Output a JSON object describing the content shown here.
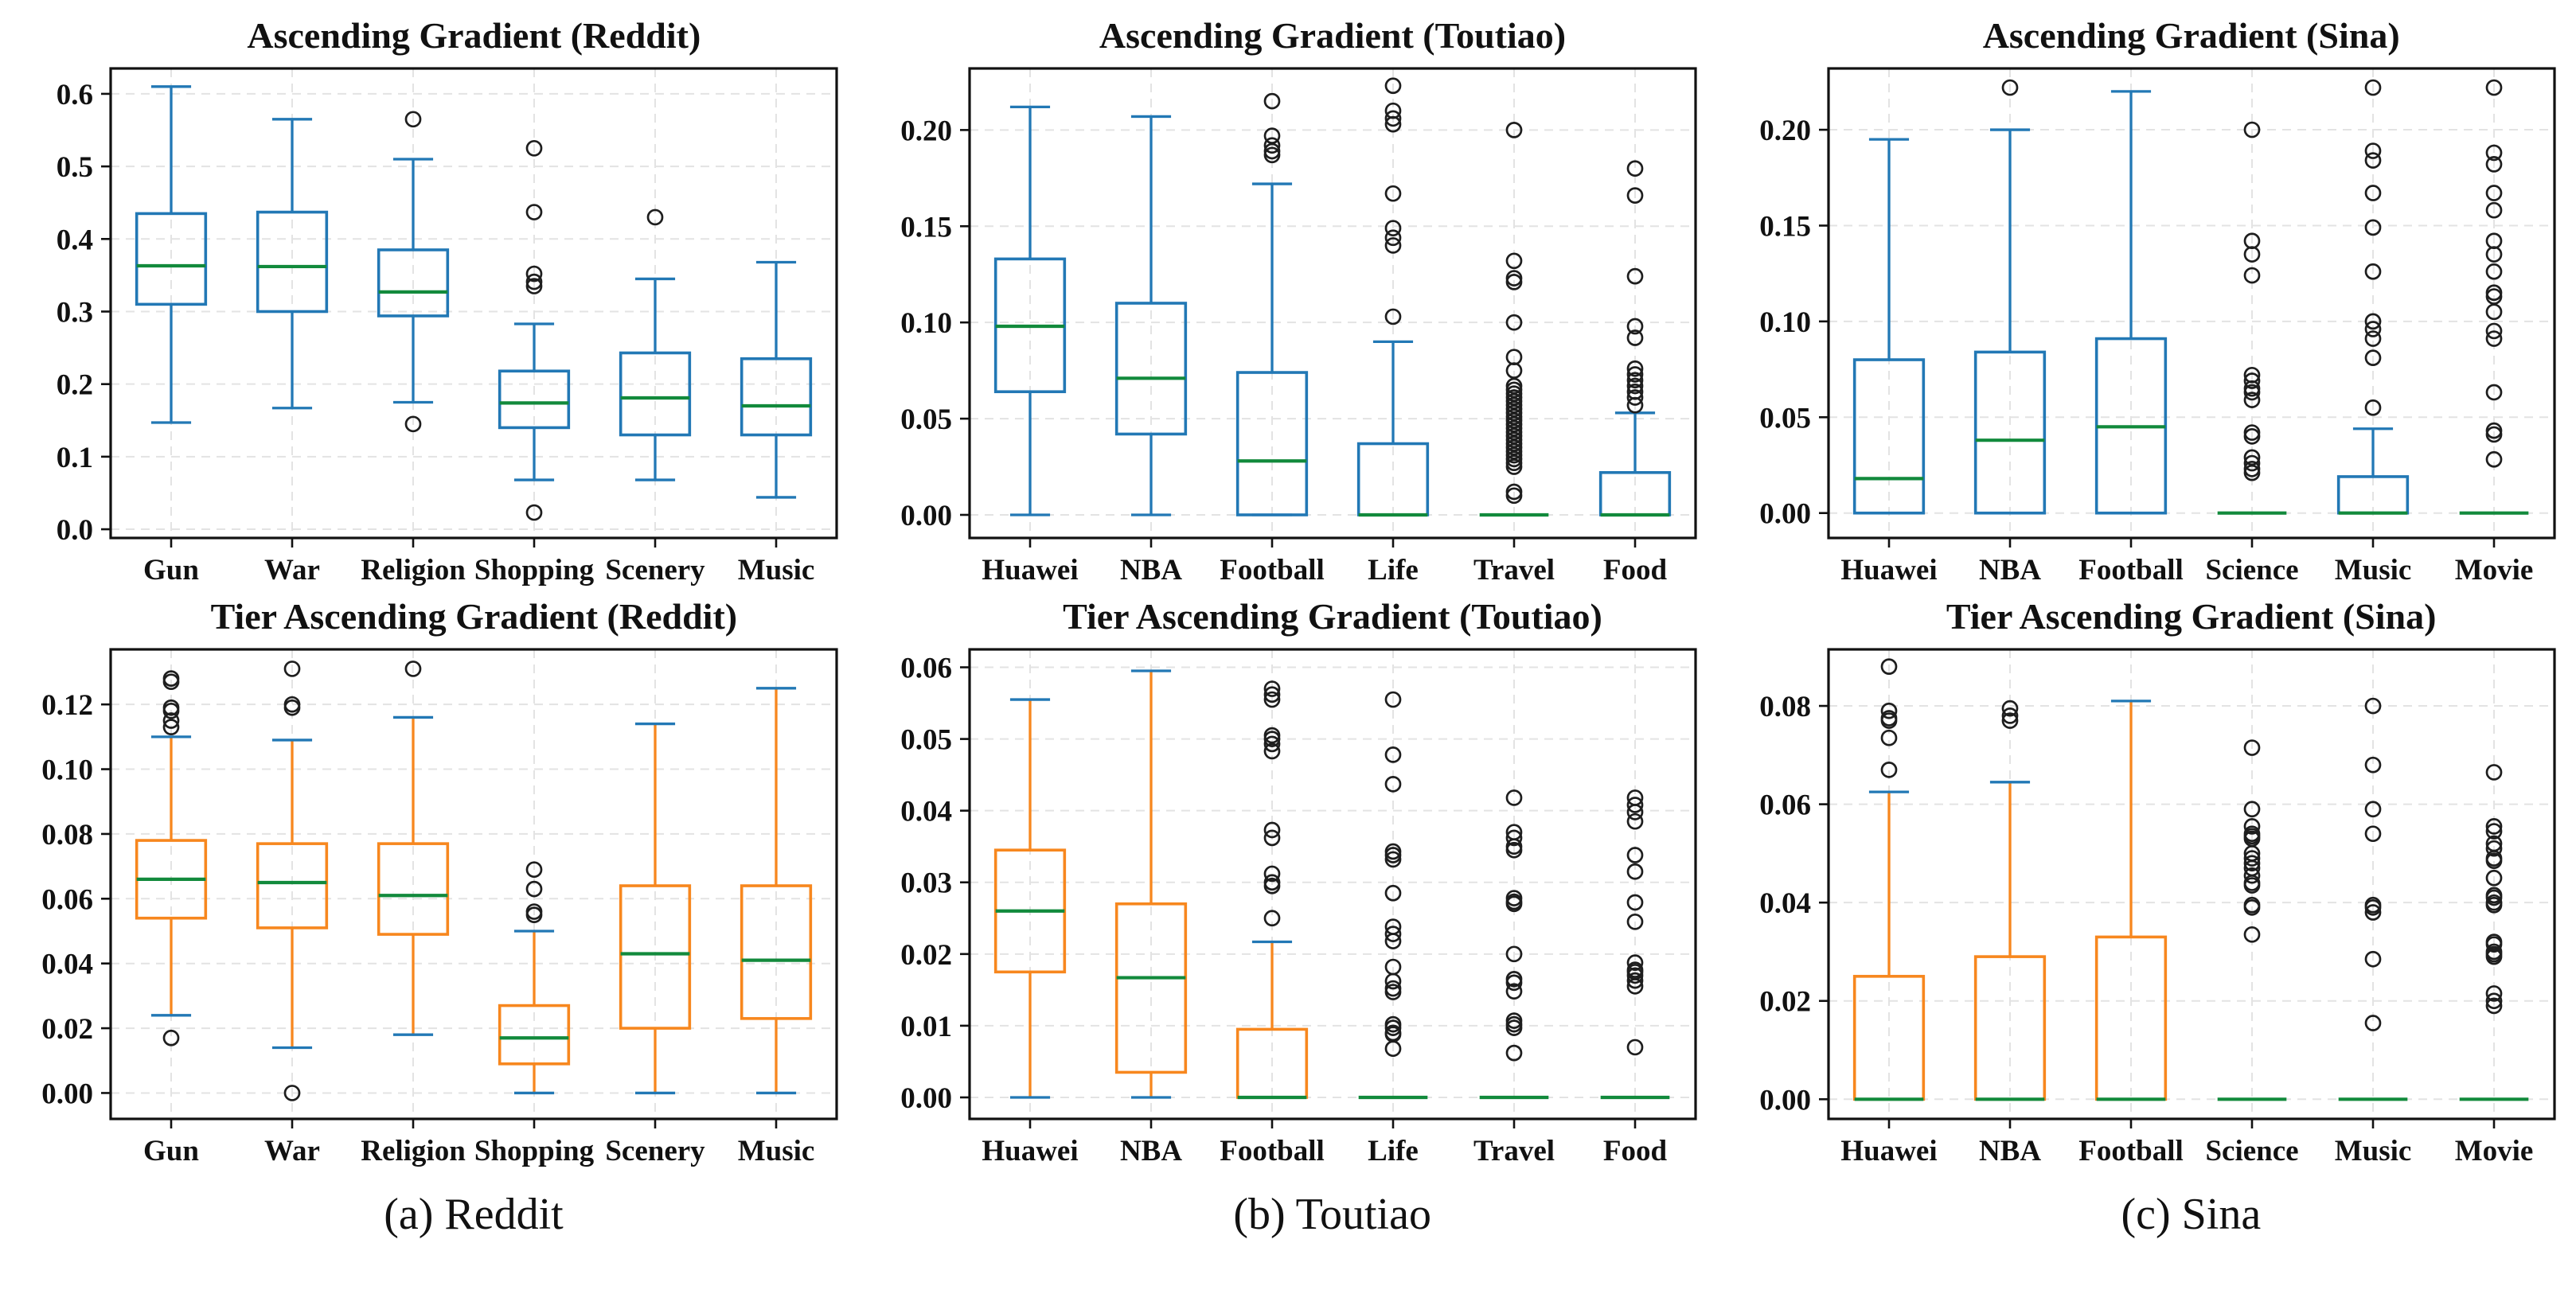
{
  "captions": [
    "(a) Reddit",
    "(b) Toutiao",
    "(c) Sina"
  ],
  "colors": {
    "box_blue": "#2278b5",
    "box_orange": "#f7871e",
    "median_green": "#128a3c",
    "outlier_black": "#1e1e1e",
    "grid_gray": "#e3e3e3",
    "axis_black": "#111111"
  },
  "chart_data": [
    {
      "id": "ascending-reddit",
      "type": "box",
      "title": "Ascending Gradient (Reddit)",
      "categories": [
        "Gun",
        "War",
        "Religion",
        "Shopping",
        "Scenery",
        "Music"
      ],
      "ylim": [
        -0.012,
        0.635
      ],
      "yticks": [
        0.0,
        0.1,
        0.2,
        0.3,
        0.4,
        0.5,
        0.6
      ],
      "ytick_decimals": 1,
      "grid": true,
      "box_color": "#2278b5",
      "whisker_color": "#2278b5",
      "cap_color": "#2278b5",
      "median_color": "#128a3c",
      "series": [
        {
          "category": "Gun",
          "whislo": 0.147,
          "q1": 0.31,
          "med": 0.363,
          "q3": 0.435,
          "whishi": 0.61,
          "outliers": []
        },
        {
          "category": "War",
          "whislo": 0.167,
          "q1": 0.3,
          "med": 0.362,
          "q3": 0.437,
          "whishi": 0.565,
          "outliers": []
        },
        {
          "category": "Religion",
          "whislo": 0.175,
          "q1": 0.294,
          "med": 0.327,
          "q3": 0.385,
          "whishi": 0.51,
          "outliers": [
            0.565,
            0.145
          ]
        },
        {
          "category": "Shopping",
          "whislo": 0.068,
          "q1": 0.14,
          "med": 0.174,
          "q3": 0.218,
          "whishi": 0.283,
          "outliers": [
            0.525,
            0.437,
            0.352,
            0.341,
            0.335,
            0.023
          ]
        },
        {
          "category": "Scenery",
          "whislo": 0.068,
          "q1": 0.13,
          "med": 0.181,
          "q3": 0.243,
          "whishi": 0.345,
          "outliers": [
            0.43
          ]
        },
        {
          "category": "Music",
          "whislo": 0.044,
          "q1": 0.13,
          "med": 0.17,
          "q3": 0.235,
          "whishi": 0.368,
          "outliers": []
        }
      ]
    },
    {
      "id": "ascending-toutiao",
      "type": "box",
      "title": "Ascending Gradient (Toutiao)",
      "categories": [
        "Huawei",
        "NBA",
        "Football",
        "Life",
        "Travel",
        "Food"
      ],
      "ylim": [
        -0.012,
        0.232
      ],
      "yticks": [
        0.0,
        0.05,
        0.1,
        0.15,
        0.2
      ],
      "ytick_decimals": 2,
      "grid": true,
      "box_color": "#2278b5",
      "whisker_color": "#2278b5",
      "cap_color": "#2278b5",
      "median_color": "#128a3c",
      "series": [
        {
          "category": "Huawei",
          "whislo": 0.0,
          "q1": 0.064,
          "med": 0.098,
          "q3": 0.133,
          "whishi": 0.212,
          "outliers": []
        },
        {
          "category": "NBA",
          "whislo": 0.0,
          "q1": 0.042,
          "med": 0.071,
          "q3": 0.11,
          "whishi": 0.207,
          "outliers": []
        },
        {
          "category": "Football",
          "whislo": 0.0,
          "q1": 0.0,
          "med": 0.028,
          "q3": 0.074,
          "whishi": 0.172,
          "outliers": [
            0.215,
            0.197,
            0.192,
            0.189,
            0.187
          ]
        },
        {
          "category": "Life",
          "whislo": 0.0,
          "q1": 0.0,
          "med": 0.0,
          "q3": 0.037,
          "whishi": 0.09,
          "outliers": [
            0.223,
            0.21,
            0.206,
            0.203,
            0.167,
            0.149,
            0.144,
            0.14,
            0.103
          ]
        },
        {
          "category": "Travel",
          "whislo": 0.0,
          "q1": 0.0,
          "med": 0.0,
          "q3": 0.0,
          "whishi": 0.0,
          "outliers": [
            0.2,
            0.132,
            0.123,
            0.121,
            0.1,
            0.082,
            0.075,
            0.067,
            0.065,
            0.063,
            0.061,
            0.059,
            0.057,
            0.055,
            0.053,
            0.051,
            0.049,
            0.047,
            0.045,
            0.043,
            0.041,
            0.039,
            0.037,
            0.035,
            0.033,
            0.031,
            0.029,
            0.027,
            0.025,
            0.012,
            0.01
          ]
        },
        {
          "category": "Food",
          "whislo": 0.0,
          "q1": 0.0,
          "med": 0.0,
          "q3": 0.022,
          "whishi": 0.053,
          "outliers": [
            0.18,
            0.166,
            0.124,
            0.098,
            0.092,
            0.076,
            0.073,
            0.07,
            0.067,
            0.064,
            0.061,
            0.057
          ]
        }
      ]
    },
    {
      "id": "ascending-sina",
      "type": "box",
      "title": "Ascending Gradient (Sina)",
      "categories": [
        "Huawei",
        "NBA",
        "Football",
        "Science",
        "Music",
        "Movie"
      ],
      "ylim": [
        -0.013,
        0.232
      ],
      "yticks": [
        0.0,
        0.05,
        0.1,
        0.15,
        0.2
      ],
      "ytick_decimals": 2,
      "grid": true,
      "box_color": "#2278b5",
      "whisker_color": "#2278b5",
      "cap_color": "#2278b5",
      "median_color": "#128a3c",
      "series": [
        {
          "category": "Huawei",
          "whislo": 0.0,
          "q1": 0.0,
          "med": 0.018,
          "q3": 0.08,
          "whishi": 0.195,
          "outliers": []
        },
        {
          "category": "NBA",
          "whislo": 0.0,
          "q1": 0.0,
          "med": 0.038,
          "q3": 0.084,
          "whishi": 0.2,
          "outliers": [
            0.222
          ]
        },
        {
          "category": "Football",
          "whislo": 0.0,
          "q1": 0.0,
          "med": 0.045,
          "q3": 0.091,
          "whishi": 0.22,
          "outliers": []
        },
        {
          "category": "Science",
          "whislo": 0.0,
          "q1": 0.0,
          "med": 0.0,
          "q3": 0.0,
          "whishi": 0.0,
          "outliers": [
            0.2,
            0.142,
            0.135,
            0.124,
            0.072,
            0.069,
            0.065,
            0.063,
            0.059,
            0.042,
            0.04,
            0.029,
            0.026,
            0.023,
            0.021
          ]
        },
        {
          "category": "Music",
          "whislo": 0.0,
          "q1": 0.0,
          "med": 0.0,
          "q3": 0.019,
          "whishi": 0.044,
          "outliers": [
            0.222,
            0.189,
            0.184,
            0.167,
            0.149,
            0.126,
            0.1,
            0.096,
            0.091,
            0.081,
            0.055
          ]
        },
        {
          "category": "Movie",
          "whislo": 0.0,
          "q1": 0.0,
          "med": 0.0,
          "q3": 0.0,
          "whishi": 0.0,
          "outliers": [
            0.222,
            0.188,
            0.182,
            0.167,
            0.158,
            0.142,
            0.135,
            0.126,
            0.115,
            0.113,
            0.105,
            0.095,
            0.091,
            0.063,
            0.043,
            0.041,
            0.028
          ]
        }
      ]
    },
    {
      "id": "tier-ascending-reddit",
      "type": "box",
      "title": "Tier Ascending Gradient (Reddit)",
      "categories": [
        "Gun",
        "War",
        "Religion",
        "Shopping",
        "Scenery",
        "Music"
      ],
      "ylim": [
        -0.008,
        0.137
      ],
      "yticks": [
        0.0,
        0.02,
        0.04,
        0.06,
        0.08,
        0.1,
        0.12
      ],
      "ytick_decimals": 2,
      "grid": true,
      "box_color": "#f7871e",
      "whisker_color": "#f7871e",
      "cap_color": "#2278b5",
      "median_color": "#128a3c",
      "series": [
        {
          "category": "Gun",
          "whislo": 0.024,
          "q1": 0.054,
          "med": 0.066,
          "q3": 0.078,
          "whishi": 0.11,
          "outliers": [
            0.128,
            0.127,
            0.119,
            0.118,
            0.115,
            0.113,
            0.017
          ]
        },
        {
          "category": "War",
          "whislo": 0.014,
          "q1": 0.051,
          "med": 0.065,
          "q3": 0.077,
          "whishi": 0.109,
          "outliers": [
            0.131,
            0.12,
            0.119,
            0.0
          ]
        },
        {
          "category": "Religion",
          "whislo": 0.018,
          "q1": 0.049,
          "med": 0.061,
          "q3": 0.077,
          "whishi": 0.116,
          "outliers": [
            0.131
          ]
        },
        {
          "category": "Shopping",
          "whislo": 0.0,
          "q1": 0.009,
          "med": 0.017,
          "q3": 0.027,
          "whishi": 0.05,
          "outliers": [
            0.069,
            0.063,
            0.056,
            0.055
          ]
        },
        {
          "category": "Scenery",
          "whislo": 0.0,
          "q1": 0.02,
          "med": 0.043,
          "q3": 0.064,
          "whishi": 0.114,
          "outliers": []
        },
        {
          "category": "Music",
          "whislo": 0.0,
          "q1": 0.023,
          "med": 0.041,
          "q3": 0.064,
          "whishi": 0.125,
          "outliers": []
        }
      ]
    },
    {
      "id": "tier-ascending-toutiao",
      "type": "box",
      "title": "Tier Ascending Gradient (Toutiao)",
      "categories": [
        "Huawei",
        "NBA",
        "Football",
        "Life",
        "Travel",
        "Food"
      ],
      "ylim": [
        -0.003,
        0.0625
      ],
      "yticks": [
        0.0,
        0.01,
        0.02,
        0.03,
        0.04,
        0.05,
        0.06
      ],
      "ytick_decimals": 2,
      "grid": true,
      "box_color": "#f7871e",
      "whisker_color": "#f7871e",
      "cap_color": "#2278b5",
      "median_color": "#128a3c",
      "series": [
        {
          "category": "Huawei",
          "whislo": 0.0,
          "q1": 0.0175,
          "med": 0.026,
          "q3": 0.0345,
          "whishi": 0.0555,
          "outliers": []
        },
        {
          "category": "NBA",
          "whislo": 0.0,
          "q1": 0.0035,
          "med": 0.0167,
          "q3": 0.027,
          "whishi": 0.0595,
          "outliers": []
        },
        {
          "category": "Football",
          "whislo": 0.0,
          "q1": 0.0,
          "med": 0.0,
          "q3": 0.0095,
          "whishi": 0.0217,
          "outliers": [
            0.057,
            0.0562,
            0.0555,
            0.0505,
            0.05,
            0.0493,
            0.0483,
            0.0373,
            0.0362,
            0.0312,
            0.03,
            0.0295,
            0.025
          ]
        },
        {
          "category": "Life",
          "whislo": 0.0,
          "q1": 0.0,
          "med": 0.0,
          "q3": 0.0,
          "whishi": 0.0,
          "outliers": [
            0.0555,
            0.0478,
            0.0437,
            0.0343,
            0.0338,
            0.0332,
            0.0285,
            0.0238,
            0.0228,
            0.0218,
            0.0182,
            0.0162,
            0.0152,
            0.0147,
            0.0102,
            0.0097,
            0.009,
            0.0088,
            0.0068
          ]
        },
        {
          "category": "Travel",
          "whislo": 0.0,
          "q1": 0.0,
          "med": 0.0,
          "q3": 0.0,
          "whishi": 0.0,
          "outliers": [
            0.0418,
            0.037,
            0.0362,
            0.035,
            0.0345,
            0.0278,
            0.0273,
            0.027,
            0.02,
            0.0165,
            0.016,
            0.0148,
            0.0107,
            0.0102,
            0.0097,
            0.0062
          ]
        },
        {
          "category": "Food",
          "whislo": 0.0,
          "q1": 0.0,
          "med": 0.0,
          "q3": 0.0,
          "whishi": 0.0,
          "outliers": [
            0.0418,
            0.0408,
            0.0398,
            0.0385,
            0.0338,
            0.0315,
            0.0272,
            0.0245,
            0.0188,
            0.0178,
            0.0175,
            0.017,
            0.0163,
            0.0155,
            0.007
          ]
        }
      ]
    },
    {
      "id": "tier-ascending-sina",
      "type": "box",
      "title": "Tier Ascending Gradient (Sina)",
      "categories": [
        "Huawei",
        "NBA",
        "Football",
        "Science",
        "Music",
        "Movie"
      ],
      "ylim": [
        -0.004,
        0.0915
      ],
      "yticks": [
        0.0,
        0.02,
        0.04,
        0.06,
        0.08
      ],
      "ytick_decimals": 2,
      "grid": true,
      "box_color": "#f7871e",
      "whisker_color": "#f7871e",
      "cap_color": "#2278b5",
      "median_color": "#128a3c",
      "series": [
        {
          "category": "Huawei",
          "whislo": 0.0,
          "q1": 0.0,
          "med": 0.0,
          "q3": 0.025,
          "whishi": 0.0625,
          "outliers": [
            0.088,
            0.079,
            0.0775,
            0.077,
            0.0735,
            0.067
          ]
        },
        {
          "category": "NBA",
          "whislo": 0.0,
          "q1": 0.0,
          "med": 0.0,
          "q3": 0.029,
          "whishi": 0.0645,
          "outliers": [
            0.0795,
            0.078,
            0.077
          ]
        },
        {
          "category": "Football",
          "whislo": 0.0,
          "q1": 0.0,
          "med": 0.0,
          "q3": 0.033,
          "whishi": 0.081,
          "outliers": []
        },
        {
          "category": "Science",
          "whislo": 0.0,
          "q1": 0.0,
          "med": 0.0,
          "q3": 0.0,
          "whishi": 0.0,
          "outliers": [
            0.0715,
            0.059,
            0.0555,
            0.054,
            0.0535,
            0.053,
            0.05,
            0.049,
            0.048,
            0.047,
            0.0455,
            0.044,
            0.0435,
            0.0395,
            0.039,
            0.0335
          ]
        },
        {
          "category": "Music",
          "whislo": 0.0,
          "q1": 0.0,
          "med": 0.0,
          "q3": 0.0,
          "whishi": 0.0,
          "outliers": [
            0.08,
            0.068,
            0.059,
            0.054,
            0.0395,
            0.039,
            0.038,
            0.0285,
            0.0155
          ]
        },
        {
          "category": "Movie",
          "whislo": 0.0,
          "q1": 0.0,
          "med": 0.0,
          "q3": 0.0,
          "whishi": 0.0,
          "outliers": [
            0.0665,
            0.0555,
            0.0545,
            0.052,
            0.051,
            0.049,
            0.0485,
            0.045,
            0.0415,
            0.041,
            0.04,
            0.0395,
            0.032,
            0.0315,
            0.03,
            0.0295,
            0.029,
            0.0215,
            0.02,
            0.019
          ]
        }
      ]
    }
  ]
}
